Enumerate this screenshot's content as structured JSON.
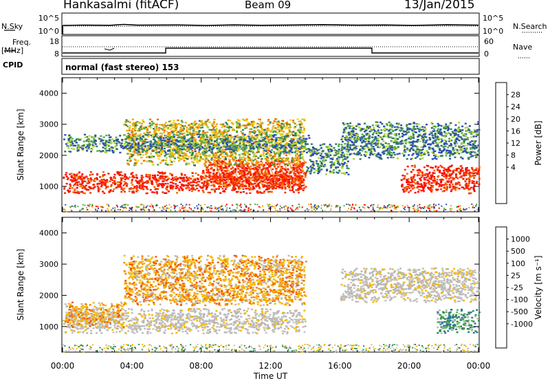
{
  "header": {
    "station": "Hankasalmi (fitACF)",
    "beam": "Beam 09",
    "date": "13/Jan/2015"
  },
  "noise_panel": {
    "left_label": "N.Sky",
    "right_label": "N.Search",
    "left_ticks": [
      "10^5",
      "10^0"
    ],
    "right_ticks": [
      "10^5",
      "10^0"
    ]
  },
  "freq_panel": {
    "left_label_line1": "Freq.",
    "left_label_line2": "[MHz]",
    "right_label": "Nave",
    "left_ticks": [
      "18",
      "8"
    ],
    "right_ticks": [
      "60",
      "0"
    ]
  },
  "cpid_panel": {
    "label": "CPID",
    "text": "normal (fast stereo) 153"
  },
  "chart_data": [
    {
      "type": "heatmap",
      "title": "Power",
      "ylabel": "Slant Range [km]",
      "xlabel": "",
      "ylim": [
        180,
        4500
      ],
      "yticks": [
        "1000",
        "2000",
        "3000",
        "4000"
      ],
      "colorbar": {
        "label": "Power [dB]",
        "ticks": [
          "28",
          "24",
          "20",
          "16",
          "12",
          "8",
          "4"
        ],
        "colors": [
          "#0000ff",
          "#2a4fb0",
          "#2e7d5a",
          "#55a843",
          "#b5d33a",
          "#f2d420",
          "#f5a300",
          "#f26a00",
          "#e83a00",
          "#ff0000"
        ]
      },
      "regions": [
        {
          "t0": 0.0,
          "t1": 14.0,
          "r0": 800,
          "r1": 1500,
          "level": "high"
        },
        {
          "t0": 8.0,
          "t1": 14.0,
          "r0": 1000,
          "r1": 1900,
          "level": "high"
        },
        {
          "t0": 3.5,
          "t1": 14.0,
          "r0": 1700,
          "r1": 3200,
          "level": "mid"
        },
        {
          "t0": 0.0,
          "t1": 14.2,
          "r0": 2100,
          "r1": 2700,
          "level": "low"
        },
        {
          "t0": 14.0,
          "t1": 16.5,
          "r0": 1400,
          "r1": 2400,
          "level": "low"
        },
        {
          "t0": 19.5,
          "t1": 24.0,
          "r0": 800,
          "r1": 1700,
          "level": "high"
        },
        {
          "t0": 16.0,
          "t1": 24.0,
          "r0": 1900,
          "r1": 3100,
          "level": "low"
        }
      ]
    },
    {
      "type": "heatmap",
      "title": "Velocity",
      "ylabel": "Slant Range [km]",
      "xlabel": "Time UT",
      "ylim": [
        180,
        4500
      ],
      "yticks": [
        "1000",
        "2000",
        "3000",
        "4000"
      ],
      "xticks": [
        "00:00",
        "04:00",
        "08:00",
        "12:00",
        "16:00",
        "20:00",
        "00:00"
      ],
      "colorbar": {
        "label": "Velocity [m s⁻¹]",
        "ticks": [
          "1000",
          "500",
          "100",
          "25",
          "-25",
          "-100",
          "-500",
          "-1000"
        ],
        "colors": [
          "#2233aa",
          "#2b6fb5",
          "#2e8a4f",
          "#58b846",
          "#bcbcbc",
          "#bcbcbc",
          "#f5b800",
          "#f58a00",
          "#f05a00",
          "#ff0000"
        ]
      },
      "regions": [
        {
          "t0": 0.0,
          "t1": 14.0,
          "r0": 800,
          "r1": 1600,
          "level": "grey"
        },
        {
          "t0": 0.0,
          "t1": 3.5,
          "r0": 1000,
          "r1": 1800,
          "level": "orange"
        },
        {
          "t0": 3.5,
          "t1": 14.0,
          "r0": 1700,
          "r1": 3300,
          "level": "orange"
        },
        {
          "t0": 21.5,
          "t1": 24.0,
          "r0": 800,
          "r1": 1600,
          "level": "green"
        },
        {
          "t0": 16.0,
          "t1": 24.0,
          "r0": 1800,
          "r1": 2900,
          "level": "grey"
        }
      ]
    }
  ]
}
